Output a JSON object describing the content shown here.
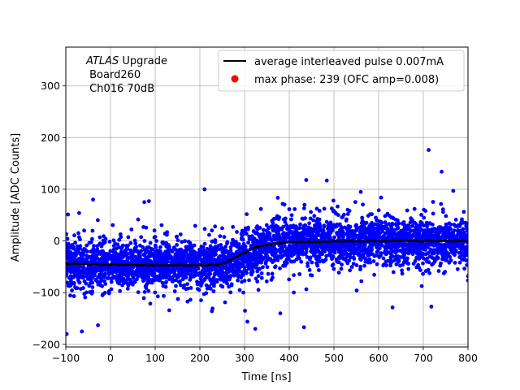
{
  "chart_data": {
    "type": "scatter",
    "title": "",
    "xlabel": "Time [ns]",
    "ylabel": "Amplitude [ADC Counts]",
    "xlim": [
      -100,
      800
    ],
    "ylim": [
      -205,
      375
    ],
    "x_ticks": [
      -100,
      0,
      100,
      200,
      300,
      400,
      500,
      600,
      700,
      800
    ],
    "y_ticks": [
      -200,
      -100,
      0,
      100,
      200,
      300
    ],
    "grid": true,
    "annotation": {
      "line1_italic": "ATLAS",
      "line1_rest": " Upgrade",
      "line2": " Board260",
      "line3": " Ch016 70dB"
    },
    "legend": {
      "placement": "top-right",
      "entries": [
        {
          "label": "average interleaved pulse 0.007mA",
          "marker": "line",
          "color": "#000000"
        },
        {
          "label": "max phase: 239 (OFC amp=0.008)",
          "marker": "dot",
          "color": "#ff0000"
        }
      ]
    },
    "series": [
      {
        "name": "samples",
        "type": "scatter",
        "color": "#0000ff",
        "band": {
          "baseline_before": -46,
          "baseline_after": 0,
          "rise_start": 240,
          "rise_end": 400,
          "core_spread": 40
        },
        "outliers": [
          {
            "x": 712,
            "y": 176
          },
          {
            "x": 741,
            "y": 134
          },
          {
            "x": 438,
            "y": 118
          },
          {
            "x": 484,
            "y": 117
          },
          {
            "x": 433,
            "y": -167
          },
          {
            "x": 324,
            "y": -170
          },
          {
            "x": -98,
            "y": -180
          },
          {
            "x": -28,
            "y": -163
          },
          {
            "x": -39,
            "y": 80
          },
          {
            "x": 86,
            "y": 77
          },
          {
            "x": 718,
            "y": -127
          },
          {
            "x": 380,
            "y": -140
          },
          {
            "x": -64,
            "y": -175
          },
          {
            "x": 767,
            "y": 97
          },
          {
            "x": 560,
            "y": 95
          },
          {
            "x": 301,
            "y": -135
          }
        ]
      },
      {
        "name": "average interleaved pulse 0.007mA",
        "type": "line",
        "color": "#000000",
        "x": [
          -100,
          0,
          100,
          200,
          240,
          260,
          280,
          300,
          320,
          340,
          360,
          380,
          400,
          500,
          600,
          700,
          800
        ],
        "y": [
          -44,
          -46,
          -47,
          -47,
          -46,
          -41,
          -31,
          -22,
          -14,
          -9,
          -6,
          -4,
          -2,
          -1,
          0,
          0,
          0
        ]
      }
    ]
  }
}
